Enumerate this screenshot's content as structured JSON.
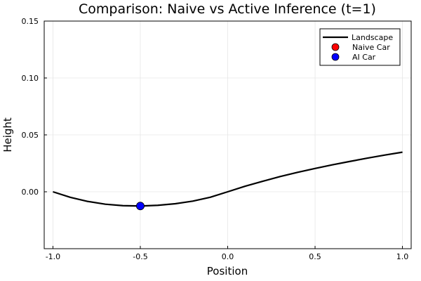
{
  "chart_data": {
    "type": "line",
    "title": "Comparison: Naive vs Active Inference (t=1)",
    "xlabel": "Position",
    "ylabel": "Height",
    "xlim": [
      -1.05,
      1.05
    ],
    "ylim": [
      -0.05,
      0.15
    ],
    "xticks": [
      -1.0,
      -0.5,
      0.0,
      0.5,
      1.0
    ],
    "xtick_labels": [
      "-1.0",
      "-0.5",
      "0.0",
      "0.5",
      "1.0"
    ],
    "yticks": [
      0.0,
      0.05,
      0.1,
      0.15
    ],
    "ytick_labels": [
      "0.00",
      "0.05",
      "0.10",
      "0.15"
    ],
    "grid": true,
    "legend_position": "top-right",
    "series": [
      {
        "name": "Landscape",
        "kind": "line",
        "color": "#000000",
        "x": [
          -1.0,
          -0.9,
          -0.8,
          -0.7,
          -0.6,
          -0.5,
          -0.4,
          -0.3,
          -0.2,
          -0.1,
          0.0,
          0.1,
          0.2,
          0.3,
          0.4,
          0.5,
          0.6,
          0.7,
          0.8,
          0.9,
          1.0
        ],
        "y": [
          0.0,
          -0.0049,
          -0.0085,
          -0.0109,
          -0.0122,
          -0.0125,
          -0.0119,
          -0.0105,
          -0.0082,
          -0.0048,
          0.0,
          0.0049,
          0.0092,
          0.0134,
          0.0171,
          0.0205,
          0.0237,
          0.0267,
          0.0296,
          0.0323,
          0.0348
        ]
      },
      {
        "name": "Naive Car",
        "kind": "scatter",
        "color": "#ff0000",
        "x": [
          -0.5
        ],
        "y": [
          -0.0125
        ]
      },
      {
        "name": "AI Car",
        "kind": "scatter",
        "color": "#0000ff",
        "x": [
          -0.5
        ],
        "y": [
          -0.0125
        ]
      }
    ]
  }
}
